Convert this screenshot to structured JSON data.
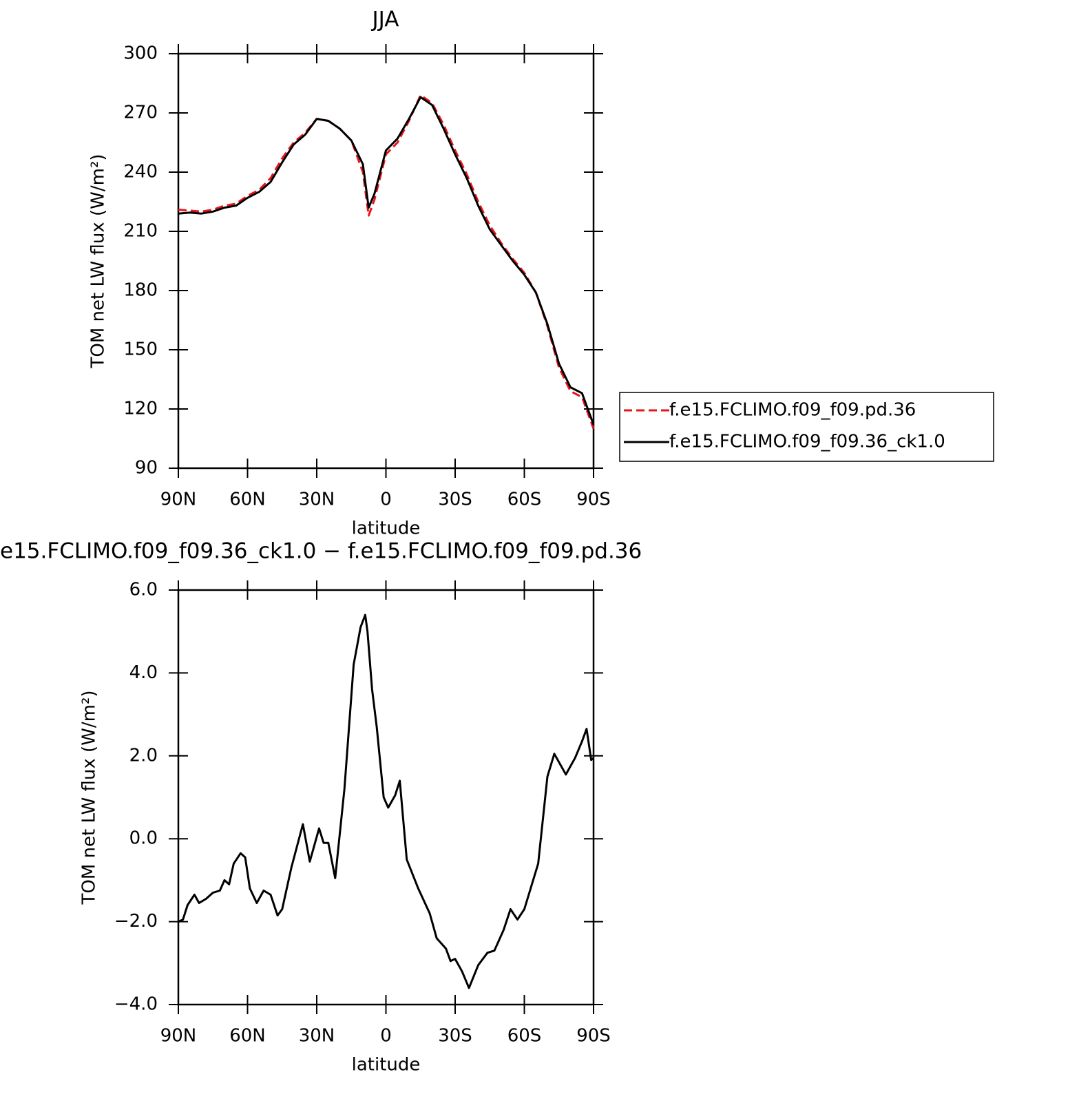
{
  "chart_data": [
    {
      "type": "line",
      "title": "JJA",
      "xlabel": "latitude",
      "ylabel": "TOM net LW flux (W/m²)",
      "x": [
        90,
        85,
        80,
        75,
        70,
        65,
        60,
        55,
        50,
        45,
        40,
        35,
        30,
        25,
        20,
        15,
        10,
        7.5,
        5,
        0,
        -5,
        -10,
        -15,
        -20,
        -25,
        -30,
        -35,
        -40,
        -45,
        -50,
        -55,
        -60,
        -65,
        -70,
        -75,
        -80,
        -85,
        -90
      ],
      "series": [
        {
          "name": "f.e15.FCLIMO.f09_f09.pd.36",
          "color": "#e8141c",
          "dash": true,
          "values": [
            221,
            220.5,
            220,
            221,
            223,
            224,
            228,
            231,
            237,
            247,
            255,
            260,
            267,
            266,
            262,
            256,
            240,
            218,
            226,
            249,
            255,
            266,
            279,
            275,
            264,
            251,
            239,
            225,
            213,
            204,
            196,
            189,
            179,
            162,
            141,
            129,
            126,
            110
          ]
        },
        {
          "name": "f.e15.FCLIMO.f09_f09.36_ck1.0",
          "color": "#000000",
          "dash": false,
          "values": [
            219,
            219.5,
            219,
            220,
            222,
            223,
            227,
            230,
            235,
            245,
            254,
            259,
            267,
            266,
            262,
            256,
            244,
            222,
            229,
            251,
            257,
            267,
            278,
            274,
            262,
            249,
            237,
            223,
            211,
            203,
            195,
            188,
            179,
            163,
            143,
            131,
            128,
            112
          ]
        }
      ],
      "xlim": [
        90,
        -90
      ],
      "xticks": [
        {
          "value": 90,
          "label": "90N"
        },
        {
          "value": 60,
          "label": "60N"
        },
        {
          "value": 30,
          "label": "30N"
        },
        0,
        {
          "value": -30,
          "label": "30S"
        },
        {
          "value": -60,
          "label": "60S"
        },
        {
          "value": -90,
          "label": "90S"
        }
      ],
      "ylim": [
        90,
        300
      ],
      "yticks": [
        90,
        120,
        150,
        180,
        210,
        240,
        270,
        300
      ],
      "legend": "right"
    },
    {
      "type": "line",
      "title": "e15.FCLIMO.f09_f09.36_ck1.0 − f.e15.FCLIMO.f09_f09.pd.36",
      "xlabel": "latitude",
      "ylabel": "TOM net LW flux (W/m²)",
      "x": [
        90,
        88,
        86,
        83,
        81,
        78,
        75,
        72,
        70,
        68,
        66,
        63,
        61,
        59,
        56,
        53,
        50,
        47,
        45,
        41,
        36,
        33,
        29,
        27,
        25,
        22,
        18,
        14,
        11,
        9,
        8,
        6,
        4,
        1,
        -1,
        -4,
        -6,
        -9,
        -14,
        -19,
        -22,
        -26,
        -28,
        -30,
        -33,
        -36,
        -40,
        -44,
        -47,
        -51,
        -54,
        -57,
        -60,
        -66,
        -70,
        -73,
        -78,
        -82,
        -85,
        -87,
        -89,
        -90
      ],
      "series": [
        {
          "color": "#000000",
          "dash": false,
          "values": [
            -2.0,
            -1.95,
            -1.6,
            -1.35,
            -1.55,
            -1.45,
            -1.3,
            -1.25,
            -1.0,
            -1.1,
            -0.6,
            -0.35,
            -0.45,
            -1.2,
            -1.55,
            -1.25,
            -1.35,
            -1.85,
            -1.7,
            -0.7,
            0.35,
            -0.55,
            0.25,
            -0.1,
            -0.1,
            -0.95,
            1.2,
            4.2,
            5.1,
            5.4,
            5.0,
            3.6,
            2.7,
            1.0,
            0.75,
            1.05,
            1.4,
            -0.5,
            -1.2,
            -1.8,
            -2.4,
            -2.65,
            -2.95,
            -2.9,
            -3.2,
            -3.6,
            -3.05,
            -2.75,
            -2.7,
            -2.2,
            -1.7,
            -1.95,
            -1.7,
            -0.6,
            1.5,
            2.05,
            1.55,
            1.95,
            2.35,
            2.65,
            1.9,
            1.95
          ]
        }
      ],
      "xlim": [
        90,
        -90
      ],
      "xticks": [
        {
          "value": 90,
          "label": "90N"
        },
        {
          "value": 60,
          "label": "60N"
        },
        {
          "value": 30,
          "label": "30N"
        },
        0,
        {
          "value": -30,
          "label": "30S"
        },
        {
          "value": -60,
          "label": "60S"
        },
        {
          "value": -90,
          "label": "90S"
        }
      ],
      "ylim": [
        -4,
        6
      ],
      "yticks": [
        {
          "value": -4,
          "label": "−4.0"
        },
        {
          "value": -2,
          "label": "−2.0"
        },
        {
          "value": 0,
          "label": "0.0"
        },
        {
          "value": 2,
          "label": "2.0"
        },
        {
          "value": 4,
          "label": "4.0"
        },
        {
          "value": 6,
          "label": "6.0"
        }
      ]
    }
  ]
}
